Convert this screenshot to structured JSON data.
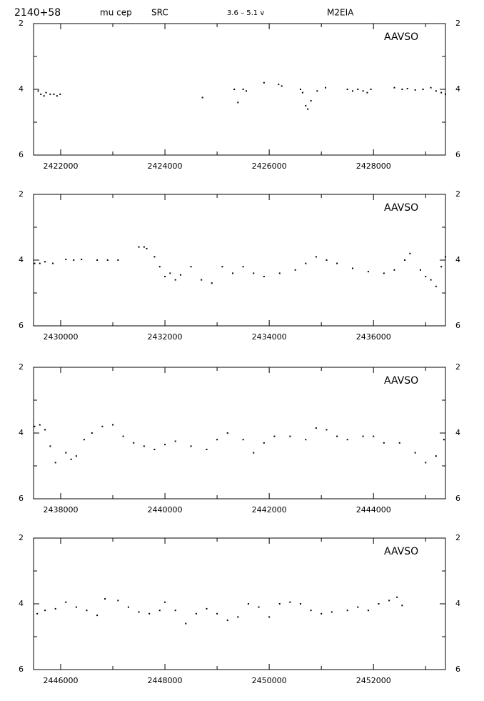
{
  "header": {
    "star_id": "2140+58",
    "star_name": "mu cep",
    "var_type": "SRC",
    "range": "3.6 –  5.1 v",
    "spectrum": "M2EIA"
  },
  "chart_data": [
    {
      "type": "scatter",
      "annotation": "AAVSO",
      "color": "#000000",
      "y_inverted": true,
      "xlim": [
        2421480,
        2429380
      ],
      "xticks": [
        2422000,
        2424000,
        2426000,
        2428000
      ],
      "xminorticks": [
        2423000,
        2425000,
        2427000,
        2429000
      ],
      "ylim": [
        2,
        6
      ],
      "yticks": [
        2,
        4,
        6
      ],
      "yminorticks": [
        3,
        5
      ],
      "x": [
        2421570,
        2421620,
        2421680,
        2421720,
        2421800,
        2421870,
        2421930,
        2421990,
        2424720,
        2425330,
        2425400,
        2425500,
        2425560,
        2425900,
        2426180,
        2426240,
        2426600,
        2426640,
        2426700,
        2426740,
        2426800,
        2426920,
        2427080,
        2427500,
        2427600,
        2427700,
        2427800,
        2427880,
        2427950,
        2428400,
        2428550,
        2428650,
        2428800,
        2428950,
        2429100,
        2429200,
        2429300,
        2429380
      ],
      "values": [
        4.05,
        4.15,
        4.2,
        4.1,
        4.15,
        4.15,
        4.2,
        4.15,
        4.25,
        4.0,
        4.4,
        4.0,
        4.05,
        3.8,
        3.85,
        3.9,
        4.0,
        4.1,
        4.5,
        4.6,
        4.35,
        4.05,
        3.95,
        4.0,
        4.05,
        4.0,
        4.05,
        4.1,
        4.0,
        3.95,
        4.0,
        3.98,
        4.02,
        4.0,
        3.95,
        4.05,
        4.1,
        4.15
      ]
    },
    {
      "type": "scatter",
      "annotation": "AAVSO",
      "color": "#000000",
      "y_inverted": true,
      "xlim": [
        2429480,
        2437380
      ],
      "xticks": [
        2430000,
        2432000,
        2434000,
        2436000
      ],
      "xminorticks": [
        2431000,
        2433000,
        2435000,
        2437000
      ],
      "ylim": [
        2,
        6
      ],
      "yticks": [
        2,
        4,
        6
      ],
      "yminorticks": [
        3,
        5
      ],
      "x": [
        2429500,
        2429600,
        2429700,
        2429850,
        2430100,
        2430250,
        2430400,
        2430700,
        2430900,
        2431100,
        2431500,
        2431600,
        2431650,
        2431800,
        2431900,
        2432000,
        2432100,
        2432200,
        2432300,
        2432500,
        2432700,
        2432900,
        2433100,
        2433300,
        2433500,
        2433700,
        2433900,
        2434200,
        2434500,
        2434700,
        2434900,
        2435100,
        2435300,
        2435600,
        2435900,
        2436200,
        2436400,
        2436600,
        2436700,
        2436900,
        2437000,
        2437100,
        2437200,
        2437300,
        2437380
      ],
      "values": [
        4.1,
        4.1,
        4.05,
        4.1,
        3.98,
        4.0,
        3.98,
        4.0,
        4.0,
        4.0,
        3.6,
        3.6,
        3.65,
        3.9,
        4.2,
        4.5,
        4.4,
        4.6,
        4.45,
        4.2,
        4.6,
        4.7,
        4.2,
        4.4,
        4.2,
        4.4,
        4.5,
        4.4,
        4.3,
        4.1,
        3.9,
        4.0,
        4.1,
        4.25,
        4.35,
        4.4,
        4.3,
        4.0,
        3.8,
        4.3,
        4.5,
        4.6,
        4.8,
        4.2,
        3.9
      ]
    },
    {
      "type": "scatter",
      "annotation": "AAVSO",
      "color": "#000000",
      "y_inverted": true,
      "xlim": [
        2437480,
        2445380
      ],
      "xticks": [
        2438000,
        2440000,
        2442000,
        2444000
      ],
      "xminorticks": [
        2439000,
        2441000,
        2443000,
        2445000
      ],
      "ylim": [
        2,
        6
      ],
      "yticks": [
        2,
        4,
        6
      ],
      "yminorticks": [
        3,
        5
      ],
      "x": [
        2437500,
        2437600,
        2437700,
        2437800,
        2437900,
        2438100,
        2438200,
        2438300,
        2438450,
        2438600,
        2438800,
        2439000,
        2439200,
        2439400,
        2439600,
        2439800,
        2440000,
        2440200,
        2440500,
        2440800,
        2441000,
        2441200,
        2441500,
        2441700,
        2441900,
        2442100,
        2442400,
        2442700,
        2442900,
        2443100,
        2443300,
        2443500,
        2443800,
        2444000,
        2444200,
        2444500,
        2444800,
        2445000,
        2445200,
        2445350
      ],
      "values": [
        3.8,
        3.75,
        3.9,
        4.4,
        4.9,
        4.6,
        4.8,
        4.7,
        4.2,
        4.0,
        3.8,
        3.75,
        4.1,
        4.3,
        4.4,
        4.5,
        4.35,
        4.25,
        4.4,
        4.5,
        4.2,
        4.0,
        4.2,
        4.6,
        4.3,
        4.1,
        4.1,
        4.2,
        3.85,
        3.9,
        4.1,
        4.2,
        4.1,
        4.1,
        4.3,
        4.3,
        4.6,
        4.9,
        4.7,
        4.2
      ]
    },
    {
      "type": "scatter",
      "annotation": "AAVSO",
      "color": "#000000",
      "y_inverted": true,
      "xlim": [
        2445480,
        2453380
      ],
      "xticks": [
        2446000,
        2448000,
        2450000,
        2452000
      ],
      "xminorticks": [
        2447000,
        2449000,
        2451000,
        2453000
      ],
      "ylim": [
        2,
        6
      ],
      "yticks": [
        2,
        4,
        6
      ],
      "yminorticks": [
        3,
        5
      ],
      "x": [
        2445550,
        2445700,
        2445900,
        2446100,
        2446300,
        2446500,
        2446700,
        2446850,
        2447100,
        2447300,
        2447500,
        2447700,
        2447900,
        2448000,
        2448200,
        2448400,
        2448600,
        2448800,
        2449000,
        2449200,
        2449400,
        2449600,
        2449800,
        2450000,
        2450200,
        2450400,
        2450600,
        2450800,
        2451000,
        2451200,
        2451500,
        2451700,
        2451900,
        2452100,
        2452300,
        2452450,
        2452550
      ],
      "values": [
        4.3,
        4.2,
        4.15,
        3.95,
        4.1,
        4.2,
        4.35,
        3.85,
        3.9,
        4.1,
        4.25,
        4.3,
        4.2,
        3.95,
        4.2,
        4.6,
        4.3,
        4.15,
        4.3,
        4.5,
        4.4,
        4.0,
        4.1,
        4.4,
        4.0,
        3.95,
        4.0,
        4.2,
        4.3,
        4.25,
        4.2,
        4.1,
        4.2,
        4.0,
        3.9,
        3.8,
        4.05
      ]
    }
  ]
}
